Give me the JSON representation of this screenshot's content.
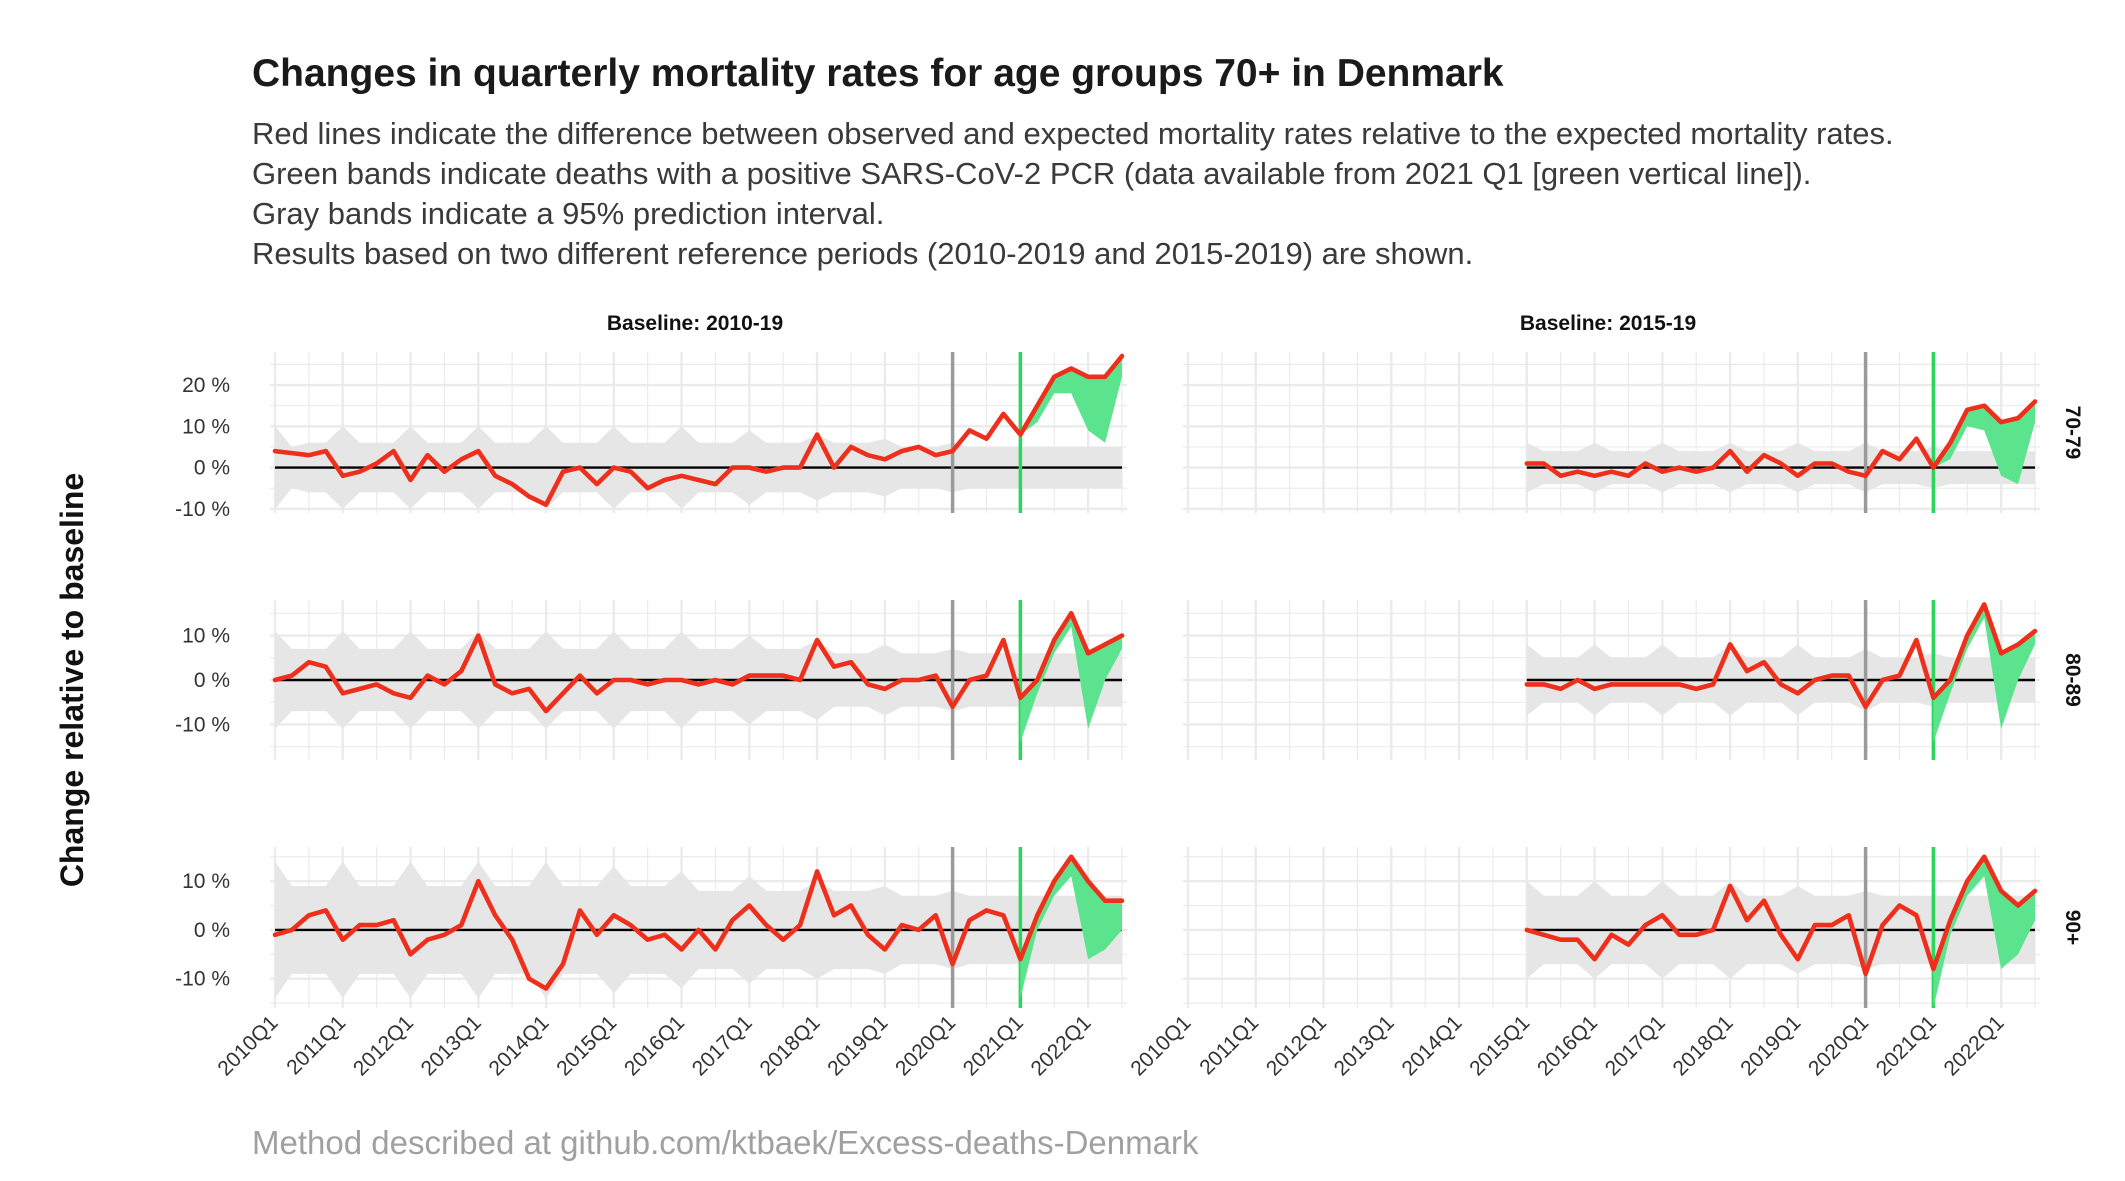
{
  "header": {
    "title": "Changes in quarterly mortality rates for age groups 70+ in Denmark",
    "subtitle_lines": [
      "Red lines indicate the difference between observed and expected mortality rates relative to the expected mortality rates.",
      "Green bands indicate deaths with a positive SARS-CoV-2 PCR (data available from 2021 Q1 [green vertical line]).",
      "Gray bands indicate a 95% prediction interval.",
      "Results based on two different reference periods (2010-2019 and 2015-2019) are shown."
    ]
  },
  "caption": "Method described at github.com/ktbaek/Excess-deaths-Denmark",
  "colors": {
    "line": "#ee2f1b",
    "covid_band": "#5ce38d",
    "pred_band": "#e6e6e6",
    "grid": "#ebebeb",
    "vline_2020": "#9a9a9a",
    "vline_2021": "#2bd65b",
    "zero": "#000000"
  },
  "chart_data": {
    "type": "line",
    "ylabel": "Change relative to baseline",
    "x_tick_labels": [
      "2010Q1",
      "2011Q1",
      "2012Q1",
      "2013Q1",
      "2014Q1",
      "2015Q1",
      "2016Q1",
      "2017Q1",
      "2018Q1",
      "2019Q1",
      "2020Q1",
      "2021Q1",
      "2022Q1"
    ],
    "x_quarters": [
      "2010Q1",
      "2010Q2",
      "2010Q3",
      "2010Q4",
      "2011Q1",
      "2011Q2",
      "2011Q3",
      "2011Q4",
      "2012Q1",
      "2012Q2",
      "2012Q3",
      "2012Q4",
      "2013Q1",
      "2013Q2",
      "2013Q3",
      "2013Q4",
      "2014Q1",
      "2014Q2",
      "2014Q3",
      "2014Q4",
      "2015Q1",
      "2015Q2",
      "2015Q3",
      "2015Q4",
      "2016Q1",
      "2016Q2",
      "2016Q3",
      "2016Q4",
      "2017Q1",
      "2017Q2",
      "2017Q3",
      "2017Q4",
      "2018Q1",
      "2018Q2",
      "2018Q3",
      "2018Q4",
      "2019Q1",
      "2019Q2",
      "2019Q3",
      "2019Q4",
      "2020Q1",
      "2020Q2",
      "2020Q3",
      "2020Q4",
      "2021Q1",
      "2021Q2",
      "2021Q3",
      "2021Q4",
      "2022Q1",
      "2022Q2",
      "2022Q3"
    ],
    "vertical_lines": [
      "2020Q1",
      "2021Q1"
    ],
    "pcr_data_start": "2021Q1",
    "facet_columns": [
      "Baseline: 2010-19",
      "Baseline: 2015-19"
    ],
    "facet_rows": [
      "70-79",
      "80-89",
      "90+"
    ],
    "panels": [
      {
        "baseline": "Baseline: 2010-19",
        "age_group": "70-79",
        "ylim": [
          -11,
          28
        ],
        "y_ticks": [
          -10,
          0,
          10,
          20
        ],
        "y_tick_labels": [
          "-10 %",
          "0 %",
          "10 %",
          "20 %"
        ],
        "start": "2010Q1",
        "values": [
          4,
          3.5,
          3,
          4,
          -2,
          -1,
          1,
          4,
          -3,
          3,
          -1,
          2,
          4,
          -2,
          -4,
          -7,
          -9,
          -1,
          0,
          -4,
          0,
          -1,
          -5,
          -3,
          -2,
          -3,
          -4,
          0,
          0,
          -1,
          0,
          0,
          8,
          0,
          5,
          3,
          2,
          4,
          5,
          3,
          4,
          9,
          7,
          13,
          8,
          15,
          22,
          24,
          22,
          22,
          27
        ],
        "band_half_width": [
          10,
          5,
          6,
          6,
          10,
          6,
          6,
          6,
          10,
          6,
          6,
          6,
          10,
          6,
          6,
          6,
          10,
          6,
          6,
          6,
          10,
          6,
          6,
          6,
          10,
          6,
          6,
          6,
          9,
          6,
          6,
          6,
          8,
          6,
          6,
          6,
          7,
          5,
          5,
          5,
          6,
          5,
          5,
          5,
          5,
          5,
          5,
          5,
          5,
          5,
          5
        ],
        "covid_deaths_share": [
          0,
          0,
          0,
          0,
          0,
          0,
          0,
          0,
          0,
          0,
          0,
          0,
          0,
          0,
          0,
          0,
          0,
          0,
          0,
          0,
          0,
          0,
          0,
          0,
          0,
          0,
          0,
          0,
          0,
          0,
          0,
          0,
          0,
          0,
          0,
          0,
          0,
          0,
          0,
          0,
          0,
          0,
          0,
          0,
          0,
          4,
          4,
          6,
          13,
          16,
          5
        ]
      },
      {
        "baseline": "Baseline: 2015-19",
        "age_group": "70-79",
        "ylim": [
          -11,
          28
        ],
        "y_ticks": [
          -10,
          0,
          10,
          20
        ],
        "y_tick_labels": [
          "-10 %",
          "0 %",
          "10 %",
          "20 %"
        ],
        "start": "2015Q1",
        "values": [
          1,
          1,
          -2,
          -1,
          -2,
          -1,
          -2,
          1,
          -1,
          0,
          -1,
          0,
          4,
          -1,
          3,
          1,
          -2,
          1,
          1,
          -1,
          -2,
          4,
          2,
          7,
          0,
          6,
          14,
          15,
          11,
          12,
          16
        ],
        "band_half_width": [
          6,
          4,
          4,
          4,
          6,
          4,
          4,
          4,
          6,
          4,
          4,
          4,
          6,
          4,
          4,
          4,
          6,
          4,
          4,
          4,
          6,
          4,
          4,
          4,
          5,
          4,
          4,
          4,
          4,
          4,
          4
        ],
        "covid_deaths_share": [
          0,
          0,
          0,
          0,
          0,
          0,
          0,
          0,
          0,
          0,
          0,
          0,
          0,
          0,
          0,
          0,
          0,
          0,
          0,
          0,
          0,
          0,
          0,
          0,
          0,
          4,
          4,
          6,
          13,
          16,
          5
        ]
      },
      {
        "baseline": "Baseline: 2010-19",
        "age_group": "80-89",
        "ylim": [
          -18,
          18
        ],
        "y_ticks": [
          -10,
          0,
          10
        ],
        "y_tick_labels": [
          "-10 %",
          "0 %",
          "10 %"
        ],
        "start": "2010Q1",
        "values": [
          0,
          1,
          4,
          3,
          -3,
          -2,
          -1,
          -3,
          -4,
          1,
          -1,
          2,
          10,
          -1,
          -3,
          -2,
          -7,
          -3,
          1,
          -3,
          0,
          0,
          -1,
          0,
          0,
          -1,
          0,
          -1,
          1,
          1,
          1,
          0,
          9,
          3,
          4,
          -1,
          -2,
          0,
          0,
          1,
          -6,
          0,
          1,
          9,
          -4,
          0,
          9,
          15,
          6,
          8,
          10
        ],
        "band_half_width": [
          11,
          7,
          7,
          7,
          11,
          7,
          7,
          7,
          11,
          7,
          7,
          7,
          11,
          7,
          7,
          7,
          11,
          7,
          7,
          7,
          11,
          7,
          7,
          7,
          11,
          7,
          7,
          7,
          10,
          7,
          7,
          7,
          9,
          6,
          6,
          6,
          8,
          6,
          6,
          6,
          7,
          6,
          6,
          6,
          6,
          6,
          6,
          6,
          6,
          6,
          6
        ],
        "covid_deaths_share": [
          0,
          0,
          0,
          0,
          0,
          0,
          0,
          0,
          0,
          0,
          0,
          0,
          0,
          0,
          0,
          0,
          0,
          0,
          0,
          0,
          0,
          0,
          0,
          0,
          0,
          0,
          0,
          0,
          0,
          0,
          0,
          0,
          0,
          0,
          0,
          0,
          0,
          0,
          0,
          0,
          0,
          0,
          0,
          0,
          10,
          3,
          3,
          3,
          17,
          8,
          3
        ]
      },
      {
        "baseline": "Baseline: 2015-19",
        "age_group": "80-89",
        "ylim": [
          -18,
          18
        ],
        "y_ticks": [
          -10,
          0,
          10
        ],
        "y_tick_labels": [
          "-10 %",
          "0 %",
          "10 %"
        ],
        "start": "2015Q1",
        "values": [
          -1,
          -1,
          -2,
          0,
          -2,
          -1,
          -1,
          -1,
          -1,
          -1,
          -2,
          -1,
          8,
          2,
          4,
          -1,
          -3,
          0,
          1,
          1,
          -6,
          0,
          1,
          9,
          -4,
          0,
          10,
          17,
          6,
          8,
          11
        ],
        "band_half_width": [
          8,
          5,
          5,
          5,
          8,
          5,
          5,
          5,
          8,
          5,
          5,
          5,
          8,
          5,
          5,
          5,
          8,
          5,
          5,
          5,
          7,
          5,
          5,
          5,
          6,
          5,
          5,
          5,
          5,
          5,
          5
        ],
        "covid_deaths_share": [
          0,
          0,
          0,
          0,
          0,
          0,
          0,
          0,
          0,
          0,
          0,
          0,
          0,
          0,
          0,
          0,
          0,
          0,
          0,
          0,
          0,
          0,
          0,
          0,
          10,
          3,
          3,
          3,
          17,
          8,
          3
        ]
      },
      {
        "baseline": "Baseline: 2010-19",
        "age_group": "90+",
        "ylim": [
          -16,
          17
        ],
        "y_ticks": [
          -10,
          0,
          10
        ],
        "y_tick_labels": [
          "-10 %",
          "0 %",
          "10 %"
        ],
        "start": "2010Q1",
        "values": [
          -1,
          0,
          3,
          4,
          -2,
          1,
          1,
          2,
          -5,
          -2,
          -1,
          1,
          10,
          3,
          -2,
          -10,
          -12,
          -7,
          4,
          -1,
          3,
          1,
          -2,
          -1,
          -4,
          0,
          -4,
          2,
          5,
          1,
          -2,
          1,
          12,
          3,
          5,
          -1,
          -4,
          1,
          0,
          3,
          -7,
          2,
          4,
          3,
          -6,
          3,
          10,
          15,
          10,
          6,
          6
        ],
        "band_half_width": [
          14,
          9,
          9,
          9,
          14,
          9,
          9,
          9,
          14,
          9,
          9,
          9,
          14,
          9,
          9,
          9,
          14,
          9,
          9,
          9,
          13,
          9,
          9,
          9,
          12,
          8,
          8,
          8,
          11,
          8,
          8,
          8,
          10,
          8,
          8,
          8,
          9,
          7,
          7,
          7,
          8,
          7,
          7,
          7,
          7,
          7,
          7,
          7,
          7,
          7,
          7
        ],
        "covid_deaths_share": [
          0,
          0,
          0,
          0,
          0,
          0,
          0,
          0,
          0,
          0,
          0,
          0,
          0,
          0,
          0,
          0,
          0,
          0,
          0,
          0,
          0,
          0,
          0,
          0,
          0,
          0,
          0,
          0,
          0,
          0,
          0,
          0,
          0,
          0,
          0,
          0,
          0,
          0,
          0,
          0,
          0,
          0,
          0,
          0,
          8,
          3,
          3,
          4,
          16,
          10,
          6
        ]
      },
      {
        "baseline": "Baseline: 2015-19",
        "age_group": "90+",
        "ylim": [
          -16,
          17
        ],
        "y_ticks": [
          -10,
          0,
          10
        ],
        "y_tick_labels": [
          "-10 %",
          "0 %",
          "10 %"
        ],
        "start": "2015Q1",
        "values": [
          0,
          -1,
          -2,
          -2,
          -6,
          -1,
          -3,
          1,
          3,
          -1,
          -1,
          0,
          9,
          2,
          6,
          -1,
          -6,
          1,
          1,
          3,
          -9,
          1,
          5,
          3,
          -8,
          2,
          10,
          15,
          8,
          5,
          8
        ],
        "band_half_width": [
          10,
          7,
          7,
          7,
          10,
          7,
          7,
          7,
          10,
          7,
          7,
          7,
          10,
          7,
          7,
          7,
          9,
          7,
          7,
          7,
          8,
          7,
          7,
          7,
          7,
          7,
          7,
          7,
          7,
          7,
          7
        ],
        "covid_deaths_share": [
          0,
          0,
          0,
          0,
          0,
          0,
          0,
          0,
          0,
          0,
          0,
          0,
          0,
          0,
          0,
          0,
          0,
          0,
          0,
          0,
          0,
          0,
          0,
          0,
          8,
          3,
          3,
          4,
          16,
          10,
          6
        ]
      }
    ]
  }
}
